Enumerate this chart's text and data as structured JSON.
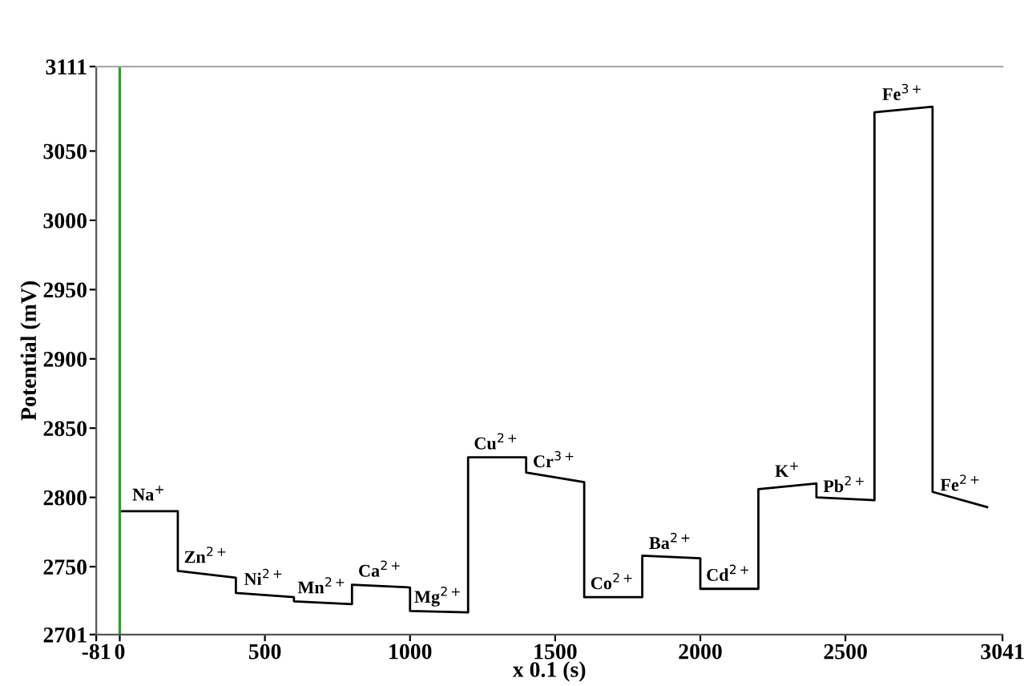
{
  "chart_data": {
    "type": "line",
    "xlabel": "x 0.1 (s)",
    "ylabel": "Potential (mV)",
    "x": [
      0,
      200,
      200,
      400,
      400,
      600,
      600,
      800,
      800,
      1000,
      1000,
      1200,
      1200,
      1400,
      1400,
      1600,
      1600,
      1800,
      1800,
      2000,
      2000,
      2200,
      2200,
      2400,
      2400,
      2600,
      2600,
      2800,
      2800,
      2988
    ],
    "series": [
      {
        "color": "#000000",
        "values": [
          2790,
          2790,
          2747,
          2742,
          2731,
          2728,
          2725,
          2723,
          2737,
          2735,
          2718,
          2717,
          2829,
          2829,
          2818,
          2811,
          2728,
          2728,
          2758,
          2756,
          2734,
          2734,
          2806,
          2810,
          2800,
          2798,
          3078,
          3082,
          2804,
          2793
        ]
      }
    ],
    "xlim": [
      -81,
      3041
    ],
    "ylim": [
      2701,
      3111
    ],
    "xticks": [
      -81,
      0,
      500,
      1000,
      1500,
      2000,
      2500,
      3041
    ],
    "yticks": [
      2701,
      2750,
      2800,
      2850,
      2900,
      2950,
      3000,
      3050,
      3111
    ],
    "ref_lines": [
      {
        "axis": "x",
        "value": 0,
        "color": "#2ca02c"
      }
    ],
    "grid": false,
    "annotations": [
      {
        "text": "Na$^{+}$",
        "x": 100,
        "y": 2795
      },
      {
        "text": "Zn$^{2+}$",
        "x": 300,
        "y": 2750
      },
      {
        "text": "Ni$^{2+}$",
        "x": 500,
        "y": 2734
      },
      {
        "text": "Mn$^{2+}$",
        "x": 700,
        "y": 2728
      },
      {
        "text": "Ca$^{2+}$",
        "x": 900,
        "y": 2740
      },
      {
        "text": "Mg$^{2+}$",
        "x": 1100,
        "y": 2721
      },
      {
        "text": "Cu$^{2+}$",
        "x": 1300,
        "y": 2832
      },
      {
        "text": "Cr$^{3+}$",
        "x": 1500,
        "y": 2819
      },
      {
        "text": "Co$^{2+}$",
        "x": 1700,
        "y": 2731
      },
      {
        "text": "Ba$^{2+}$",
        "x": 1900,
        "y": 2760
      },
      {
        "text": "Cd$^{2+}$",
        "x": 2100,
        "y": 2737
      },
      {
        "text": "K$^{+}$",
        "x": 2300,
        "y": 2812
      },
      {
        "text": "Pb$^{2+}$",
        "x": 2500,
        "y": 2801
      },
      {
        "text": "Fe$^{3+}$",
        "x": 2700,
        "y": 3084
      },
      {
        "text": "Fe$^{2+}$",
        "x": 2900,
        "y": 2802
      }
    ]
  }
}
